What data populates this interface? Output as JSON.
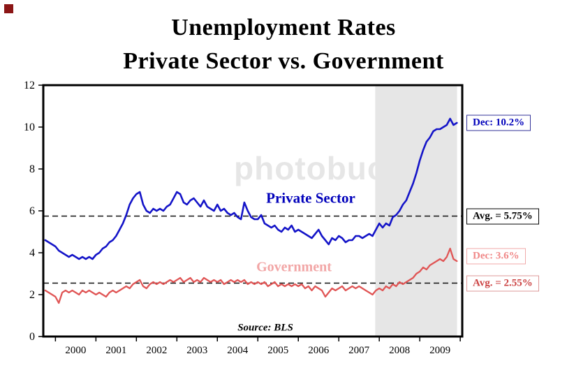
{
  "title": {
    "line1": "Unemployment Rates",
    "line2": "Private Sector vs. Government"
  },
  "watermark": "photobucket",
  "source_label": "Source: BLS",
  "chart_data": {
    "type": "line",
    "title": "Unemployment Rates Private Sector vs. Government",
    "xlabel": "",
    "ylabel": "",
    "x_start": 1999.75,
    "x_step": 0.0833333,
    "xlim": [
      1999.7,
      2010.05
    ],
    "ylim": [
      0,
      12
    ],
    "yticks": [
      0,
      2,
      4,
      6,
      8,
      10,
      12
    ],
    "xticks": [
      2000,
      2001,
      2002,
      2003,
      2004,
      2005,
      2006,
      2007,
      2008,
      2009,
      2010
    ],
    "xtick_labels": [
      "2000",
      "2001",
      "2002",
      "2003",
      "2004",
      "2005",
      "2006",
      "2007",
      "2008",
      "2009"
    ],
    "grid": false,
    "recession_band": {
      "x0": 2007.9,
      "x1": 2009.92,
      "color": "#e6e6e6"
    },
    "series": [
      {
        "name": "Private Sector",
        "color": "#1414c8",
        "values": [
          4.6,
          4.5,
          4.4,
          4.3,
          4.1,
          4.0,
          3.9,
          3.8,
          3.9,
          3.8,
          3.7,
          3.8,
          3.7,
          3.8,
          3.7,
          3.9,
          4.0,
          4.2,
          4.3,
          4.5,
          4.6,
          4.8,
          5.1,
          5.4,
          5.8,
          6.3,
          6.6,
          6.8,
          6.9,
          6.3,
          6.0,
          5.9,
          6.1,
          6.0,
          6.1,
          6.0,
          6.2,
          6.3,
          6.6,
          6.9,
          6.8,
          6.4,
          6.3,
          6.5,
          6.6,
          6.4,
          6.2,
          6.5,
          6.2,
          6.1,
          6.0,
          6.3,
          6.0,
          6.1,
          5.9,
          5.8,
          5.9,
          5.7,
          5.6,
          6.4,
          6.0,
          5.7,
          5.6,
          5.6,
          5.8,
          5.4,
          5.3,
          5.2,
          5.3,
          5.1,
          5.0,
          5.2,
          5.1,
          5.3,
          5.0,
          5.1,
          5.0,
          4.9,
          4.8,
          4.7,
          4.9,
          5.1,
          4.8,
          4.6,
          4.4,
          4.7,
          4.6,
          4.8,
          4.7,
          4.5,
          4.6,
          4.6,
          4.8,
          4.8,
          4.7,
          4.8,
          4.9,
          4.8,
          5.1,
          5.4,
          5.2,
          5.4,
          5.3,
          5.7,
          5.8,
          6.0,
          6.3,
          6.5,
          6.9,
          7.3,
          7.8,
          8.4,
          8.9,
          9.3,
          9.5,
          9.8,
          9.9,
          9.9,
          10.0,
          10.1,
          10.4,
          10.1,
          10.2
        ]
      },
      {
        "name": "Government",
        "color": "#e05555",
        "values": [
          2.2,
          2.1,
          2.0,
          1.9,
          1.6,
          2.1,
          2.2,
          2.1,
          2.2,
          2.1,
          2.0,
          2.2,
          2.1,
          2.2,
          2.1,
          2.0,
          2.1,
          2.0,
          1.9,
          2.1,
          2.2,
          2.1,
          2.2,
          2.3,
          2.4,
          2.3,
          2.5,
          2.6,
          2.7,
          2.4,
          2.3,
          2.5,
          2.6,
          2.5,
          2.6,
          2.5,
          2.6,
          2.7,
          2.6,
          2.7,
          2.8,
          2.6,
          2.7,
          2.8,
          2.6,
          2.7,
          2.6,
          2.8,
          2.7,
          2.6,
          2.7,
          2.6,
          2.7,
          2.5,
          2.6,
          2.7,
          2.6,
          2.7,
          2.6,
          2.7,
          2.5,
          2.6,
          2.5,
          2.6,
          2.5,
          2.6,
          2.4,
          2.5,
          2.6,
          2.4,
          2.5,
          2.4,
          2.5,
          2.4,
          2.5,
          2.4,
          2.5,
          2.3,
          2.4,
          2.2,
          2.4,
          2.3,
          2.2,
          1.9,
          2.1,
          2.3,
          2.2,
          2.3,
          2.4,
          2.2,
          2.3,
          2.4,
          2.3,
          2.4,
          2.3,
          2.2,
          2.1,
          2.0,
          2.2,
          2.3,
          2.2,
          2.4,
          2.3,
          2.5,
          2.4,
          2.6,
          2.5,
          2.6,
          2.7,
          2.8,
          3.0,
          3.1,
          3.3,
          3.2,
          3.4,
          3.5,
          3.6,
          3.7,
          3.6,
          3.8,
          4.2,
          3.7,
          3.6
        ]
      }
    ],
    "avg_lines": [
      {
        "value": 5.75,
        "label": "Avg. = 5.75%"
      },
      {
        "value": 2.55,
        "label": "Avg. = 2.55%"
      }
    ],
    "annotations": [
      {
        "id": "dec-private",
        "label": "Dec: 10.2%",
        "y": 10.2,
        "text_color": "#0000bb",
        "border_color": "#333399"
      },
      {
        "id": "avg-private",
        "label": "Avg. = 5.75%",
        "y": 5.75,
        "text_color": "#000000",
        "border_color": "#000000"
      },
      {
        "id": "dec-government",
        "label": "Dec: 3.6%",
        "y": 3.85,
        "text_color": "#f08888",
        "border_color": "#f0aaaa"
      },
      {
        "id": "avg-government",
        "label": "Avg. = 2.55%",
        "y": 2.55,
        "text_color": "#cc4444",
        "border_color": "#dd9999"
      }
    ],
    "series_labels": [
      {
        "text": "Private Sector",
        "color": "#0000bb"
      },
      {
        "text": "Government",
        "color": "#f2a6a6"
      }
    ]
  }
}
